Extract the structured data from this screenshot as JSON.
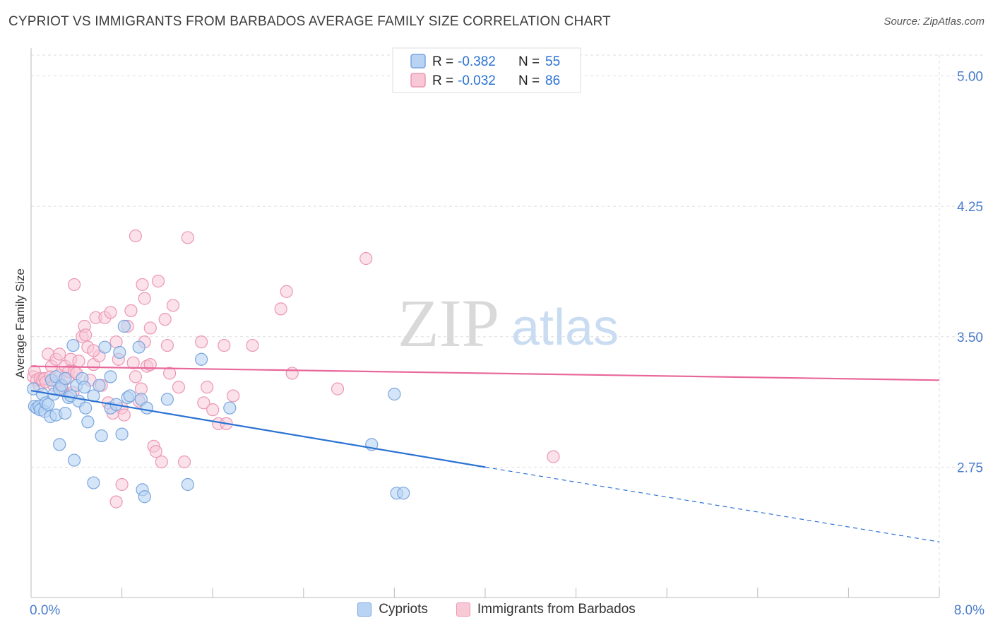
{
  "title": "CYPRIOT VS IMMIGRANTS FROM BARBADOS AVERAGE FAMILY SIZE CORRELATION CHART",
  "source": "Source: ZipAtlas.com",
  "watermark": {
    "zip": "ZIP",
    "atlas": "atlas"
  },
  "colors": {
    "blue_fill": "#b8d3f3",
    "blue_stroke": "#7aa6de",
    "blue_line": "#2a72d2",
    "pink_fill": "#f8c8d7",
    "pink_stroke": "#ec97b3",
    "pink_line": "#e8679a",
    "axis_label": "#4a7ccc",
    "grid": "#dddddd"
  },
  "legend": {
    "items": [
      {
        "r_label": "R =",
        "r_value": "-0.382",
        "n_label": "N =",
        "n_value": "55"
      },
      {
        "r_label": "R =",
        "r_value": "-0.032",
        "n_label": "N =",
        "n_value": "86"
      }
    ]
  },
  "bottom_legend": {
    "cypriots": "Cypriots",
    "barbados": "Immigrants from Barbados"
  },
  "chart_data": {
    "type": "scatter",
    "title": "CYPRIOT VS IMMIGRANTS FROM BARBADOS AVERAGE FAMILY SIZE CORRELATION CHART",
    "xlabel": "",
    "ylabel": "Average Family Size",
    "xlim": [
      0,
      8
    ],
    "ylim": [
      2.0,
      5.12
    ],
    "x_tick_labels": [
      "0.0%",
      "8.0%"
    ],
    "y_ticks": [
      2.75,
      3.5,
      4.25,
      5.0
    ],
    "y_tick_labels": [
      "2.75",
      "3.50",
      "4.25",
      "5.00"
    ],
    "grid": true,
    "series": [
      {
        "name": "Cypriots",
        "r": -0.382,
        "n": 55,
        "trend": {
          "x0": 0,
          "y0": 3.19,
          "x1": 4.0,
          "y1": 2.75,
          "dash_to_x": 8.0,
          "dash_to_y": 2.32
        },
        "points": [
          [
            0.02,
            3.2
          ],
          [
            0.03,
            3.1
          ],
          [
            0.05,
            3.09
          ],
          [
            0.07,
            3.1
          ],
          [
            0.08,
            3.08
          ],
          [
            0.1,
            3.17
          ],
          [
            0.12,
            3.07
          ],
          [
            0.13,
            3.12
          ],
          [
            0.15,
            3.11
          ],
          [
            0.17,
            3.04
          ],
          [
            0.18,
            3.25
          ],
          [
            0.2,
            3.17
          ],
          [
            0.22,
            3.27
          ],
          [
            0.22,
            3.05
          ],
          [
            0.25,
            3.2
          ],
          [
            0.25,
            2.88
          ],
          [
            0.27,
            3.22
          ],
          [
            0.3,
            3.26
          ],
          [
            0.3,
            3.06
          ],
          [
            0.33,
            3.15
          ],
          [
            0.35,
            3.16
          ],
          [
            0.37,
            3.45
          ],
          [
            0.38,
            2.79
          ],
          [
            0.4,
            3.22
          ],
          [
            0.42,
            3.13
          ],
          [
            0.45,
            3.26
          ],
          [
            0.47,
            3.21
          ],
          [
            0.48,
            3.09
          ],
          [
            0.5,
            3.01
          ],
          [
            0.55,
            2.66
          ],
          [
            0.6,
            3.22
          ],
          [
            0.62,
            2.93
          ],
          [
            0.65,
            3.44
          ],
          [
            0.7,
            3.09
          ],
          [
            0.75,
            3.11
          ],
          [
            0.78,
            3.41
          ],
          [
            0.8,
            2.94
          ],
          [
            0.82,
            3.56
          ],
          [
            0.85,
            3.15
          ],
          [
            0.87,
            3.16
          ],
          [
            0.95,
            3.44
          ],
          [
            0.97,
            3.14
          ],
          [
            0.98,
            2.62
          ],
          [
            1.0,
            2.58
          ],
          [
            1.02,
            3.09
          ],
          [
            1.2,
            3.14
          ],
          [
            1.38,
            2.65
          ],
          [
            1.5,
            3.37
          ],
          [
            1.75,
            3.09
          ],
          [
            3.0,
            2.88
          ],
          [
            3.2,
            3.17
          ],
          [
            3.22,
            2.6
          ],
          [
            3.28,
            2.6
          ],
          [
            0.55,
            3.16
          ],
          [
            0.7,
            3.27
          ]
        ]
      },
      {
        "name": "Immigrants from Barbados",
        "r": -0.032,
        "n": 86,
        "trend": {
          "x0": 0,
          "y0": 3.33,
          "x1": 8.0,
          "y1": 3.25
        },
        "points": [
          [
            0.02,
            3.27
          ],
          [
            0.03,
            3.3
          ],
          [
            0.05,
            3.25
          ],
          [
            0.07,
            3.22
          ],
          [
            0.08,
            3.26
          ],
          [
            0.1,
            3.25
          ],
          [
            0.12,
            3.26
          ],
          [
            0.13,
            3.24
          ],
          [
            0.15,
            3.4
          ],
          [
            0.17,
            3.27
          ],
          [
            0.18,
            3.33
          ],
          [
            0.2,
            3.22
          ],
          [
            0.22,
            3.37
          ],
          [
            0.23,
            3.24
          ],
          [
            0.25,
            3.4
          ],
          [
            0.25,
            3.28
          ],
          [
            0.27,
            3.21
          ],
          [
            0.28,
            3.19
          ],
          [
            0.3,
            3.33
          ],
          [
            0.32,
            3.26
          ],
          [
            0.33,
            3.3
          ],
          [
            0.35,
            3.37
          ],
          [
            0.37,
            3.18
          ],
          [
            0.38,
            3.3
          ],
          [
            0.4,
            3.29
          ],
          [
            0.42,
            3.36
          ],
          [
            0.45,
            3.5
          ],
          [
            0.47,
            3.56
          ],
          [
            0.48,
            3.51
          ],
          [
            0.5,
            3.44
          ],
          [
            0.52,
            3.25
          ],
          [
            0.55,
            3.34
          ],
          [
            0.57,
            3.61
          ],
          [
            0.6,
            3.39
          ],
          [
            0.62,
            3.22
          ],
          [
            0.65,
            3.61
          ],
          [
            0.68,
            3.12
          ],
          [
            0.7,
            3.64
          ],
          [
            0.72,
            3.06
          ],
          [
            0.75,
            3.47
          ],
          [
            0.77,
            3.37
          ],
          [
            0.8,
            3.09
          ],
          [
            0.82,
            3.05
          ],
          [
            0.85,
            3.56
          ],
          [
            0.88,
            3.65
          ],
          [
            0.9,
            3.35
          ],
          [
            0.92,
            3.27
          ],
          [
            0.95,
            3.13
          ],
          [
            0.97,
            3.2
          ],
          [
            1.0,
            3.47
          ],
          [
            1.02,
            3.33
          ],
          [
            1.05,
            3.55
          ],
          [
            1.08,
            2.87
          ],
          [
            1.1,
            2.84
          ],
          [
            1.12,
            3.82
          ],
          [
            1.15,
            2.78
          ],
          [
            1.18,
            3.6
          ],
          [
            1.2,
            3.45
          ],
          [
            1.22,
            3.29
          ],
          [
            1.25,
            3.68
          ],
          [
            1.3,
            3.21
          ],
          [
            1.35,
            2.78
          ],
          [
            1.38,
            4.07
          ],
          [
            1.5,
            3.47
          ],
          [
            1.52,
            3.12
          ],
          [
            1.55,
            3.21
          ],
          [
            1.6,
            3.08
          ],
          [
            1.65,
            3.0
          ],
          [
            1.7,
            3.45
          ],
          [
            1.78,
            3.16
          ],
          [
            1.95,
            3.45
          ],
          [
            2.2,
            3.66
          ],
          [
            2.25,
            3.76
          ],
          [
            2.3,
            3.29
          ],
          [
            2.7,
            3.2
          ],
          [
            2.95,
            3.95
          ],
          [
            4.6,
            2.81
          ],
          [
            0.38,
            3.8
          ],
          [
            0.55,
            3.42
          ],
          [
            0.75,
            2.55
          ],
          [
            0.8,
            2.65
          ],
          [
            0.92,
            4.08
          ],
          [
            0.98,
            3.8
          ],
          [
            1.0,
            3.72
          ],
          [
            1.05,
            3.34
          ],
          [
            1.72,
            3.0
          ]
        ]
      }
    ]
  }
}
